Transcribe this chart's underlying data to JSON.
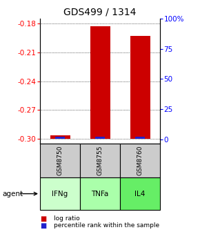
{
  "title": "GDS499 / 1314",
  "samples": [
    "GSM8750",
    "GSM8755",
    "GSM8760"
  ],
  "agents": [
    "IFNg",
    "TNFa",
    "IL4"
  ],
  "log_ratios": [
    -0.296,
    -0.183,
    -0.193
  ],
  "percentile_ranks": [
    2,
    2,
    2
  ],
  "log_ratio_base": -0.3,
  "ylim": [
    -0.305,
    -0.175
  ],
  "yticks_left": [
    -0.3,
    -0.27,
    -0.24,
    -0.21,
    -0.18
  ],
  "yticks_right": [
    0,
    25,
    50,
    75,
    100
  ],
  "bar_color_red": "#cc0000",
  "bar_color_blue": "#2222cc",
  "sample_box_color": "#cccccc",
  "agent_colors": [
    "#ccffcc",
    "#aaffaa",
    "#66ee66"
  ],
  "legend_red": "log ratio",
  "legend_blue": "percentile rank within the sample",
  "title_fontsize": 10,
  "tick_fontsize": 7.5,
  "bar_width": 0.5,
  "blue_bar_width": 0.25
}
